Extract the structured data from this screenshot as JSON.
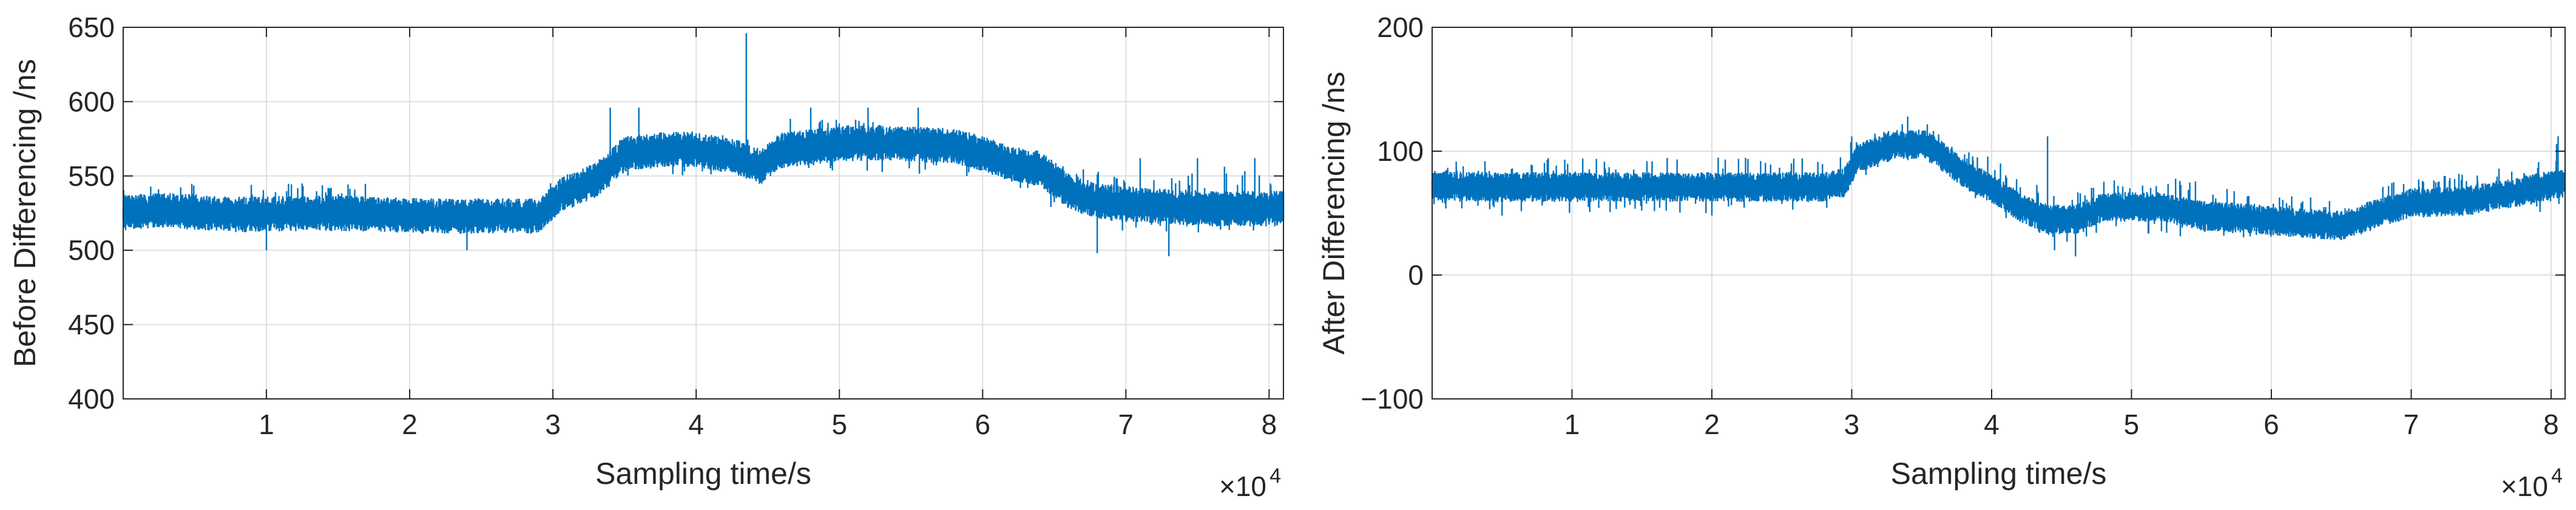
{
  "figure": {
    "background": "#ffffff",
    "series_color": "#0072BD",
    "grid_color": "#dfdfdf",
    "axis_color": "#262626"
  },
  "chart_data": [
    {
      "type": "line",
      "xlabel": "Sampling time/s",
      "ylabel": "Before Differencing /ns",
      "x_exponent_label": "×10",
      "x_exponent": "4",
      "xlim": [
        0,
        81000
      ],
      "ylim": [
        400,
        650
      ],
      "xticks": [
        10000,
        20000,
        30000,
        40000,
        50000,
        60000,
        70000,
        80000
      ],
      "xtick_labels": [
        "1",
        "2",
        "3",
        "4",
        "5",
        "6",
        "7",
        "8"
      ],
      "yticks": [
        400,
        450,
        500,
        550,
        600,
        650
      ],
      "ytick_labels": [
        "400",
        "450",
        "500",
        "550",
        "600",
        "650"
      ],
      "grid": true,
      "series": [
        {
          "baseline": [
            [
              0,
              525
            ],
            [
              3000,
              527
            ],
            [
              8000,
              524
            ],
            [
              15000,
              525
            ],
            [
              18000,
              524
            ],
            [
              22000,
              523
            ],
            [
              26000,
              523
            ],
            [
              29000,
              523
            ],
            [
              30500,
              537
            ],
            [
              33000,
              547
            ],
            [
              35000,
              565
            ],
            [
              38000,
              568
            ],
            [
              40000,
              568
            ],
            [
              43000,
              562
            ],
            [
              44500,
              556
            ],
            [
              46000,
              567
            ],
            [
              50000,
              572
            ],
            [
              54000,
              572
            ],
            [
              58000,
              570
            ],
            [
              60000,
              565
            ],
            [
              62000,
              558
            ],
            [
              64000,
              555
            ],
            [
              66000,
              540
            ],
            [
              68000,
              533
            ],
            [
              72000,
              530
            ],
            [
              76000,
              528
            ],
            [
              81000,
              528
            ]
          ],
          "band_low": [
            [
              0,
              515
            ],
            [
              18000,
              518
            ],
            [
              29000,
              515
            ],
            [
              30500,
              530
            ],
            [
              33000,
              535
            ],
            [
              35000,
              550
            ],
            [
              44000,
              548
            ],
            [
              46000,
              555
            ],
            [
              58000,
              550
            ],
            [
              62000,
              545
            ],
            [
              66000,
              520
            ],
            [
              70000,
              512
            ],
            [
              81000,
              512
            ]
          ],
          "band_high": [
            [
              0,
              545
            ],
            [
              18000,
              545
            ],
            [
              19000,
              528
            ],
            [
              29000,
              528
            ],
            [
              30000,
              550
            ],
            [
              33000,
              560
            ],
            [
              35000,
              580
            ],
            [
              44000,
              578
            ],
            [
              45000,
              560
            ],
            [
              46000,
              595
            ],
            [
              58000,
              580
            ],
            [
              60000,
              575
            ],
            [
              62000,
              565
            ],
            [
              66000,
              560
            ],
            [
              70000,
              550
            ],
            [
              81000,
              560
            ]
          ],
          "noise_amplitude": 12,
          "spikes": [
            [
              43500,
              646
            ],
            [
              34000,
              596
            ],
            [
              36000,
              596
            ],
            [
              48000,
              596
            ],
            [
              52000,
              596
            ],
            [
              55500,
              596
            ],
            [
              71000,
              562
            ],
            [
              75000,
              562
            ],
            [
              79000,
              562
            ],
            [
              10000,
              500
            ],
            [
              24000,
              500
            ],
            [
              42000,
              560
            ],
            [
              68000,
              498
            ],
            [
              73000,
              496
            ]
          ]
        }
      ]
    },
    {
      "type": "line",
      "xlabel": "Sampling time/s",
      "ylabel": "After Differencing /ns",
      "x_exponent_label": "×10",
      "x_exponent": "4",
      "xlim": [
        0,
        81000
      ],
      "ylim": [
        -100,
        200
      ],
      "xticks": [
        10000,
        20000,
        30000,
        40000,
        50000,
        60000,
        70000,
        80000
      ],
      "xtick_labels": [
        "1",
        "2",
        "3",
        "4",
        "5",
        "6",
        "7",
        "8"
      ],
      "yticks": [
        -100,
        0,
        100,
        200
      ],
      "ytick_labels": [
        "−100",
        "0",
        "100",
        "200"
      ],
      "grid": true,
      "series": [
        {
          "baseline": [
            [
              0,
              72
            ],
            [
              5000,
              71
            ],
            [
              10000,
              71
            ],
            [
              20000,
              71
            ],
            [
              28000,
              71
            ],
            [
              29500,
              75
            ],
            [
              30500,
              95
            ],
            [
              33000,
              105
            ],
            [
              35000,
              106
            ],
            [
              36000,
              100
            ],
            [
              38000,
              82
            ],
            [
              40000,
              70
            ],
            [
              42000,
              55
            ],
            [
              44000,
              45
            ],
            [
              46000,
              45
            ],
            [
              48000,
              55
            ],
            [
              52000,
              55
            ],
            [
              55000,
              48
            ],
            [
              58000,
              46
            ],
            [
              62000,
              42
            ],
            [
              65000,
              40
            ],
            [
              67000,
              48
            ],
            [
              70000,
              58
            ],
            [
              74000,
              60
            ],
            [
              78000,
              68
            ],
            [
              81000,
              75
            ]
          ],
          "band_low": [
            [
              0,
              50
            ],
            [
              28000,
              50
            ],
            [
              30000,
              72
            ],
            [
              33000,
              95
            ],
            [
              36000,
              85
            ],
            [
              38000,
              70
            ],
            [
              40000,
              50
            ],
            [
              42000,
              40
            ],
            [
              44000,
              25
            ],
            [
              47000,
              25
            ],
            [
              48000,
              35
            ],
            [
              55000,
              30
            ],
            [
              58000,
              30
            ],
            [
              65000,
              30
            ],
            [
              68000,
              35
            ],
            [
              70000,
              45
            ],
            [
              81000,
              50
            ]
          ],
          "band_high": [
            [
              0,
              95
            ],
            [
              28000,
              95
            ],
            [
              30000,
              110
            ],
            [
              33000,
              122
            ],
            [
              35000,
              128
            ],
            [
              37000,
              115
            ],
            [
              40000,
              95
            ],
            [
              42000,
              80
            ],
            [
              44000,
              70
            ],
            [
              47000,
              70
            ],
            [
              48000,
              78
            ],
            [
              55000,
              78
            ],
            [
              58000,
              65
            ],
            [
              65000,
              62
            ],
            [
              68000,
              72
            ],
            [
              70000,
              80
            ],
            [
              78000,
              90
            ],
            [
              81000,
              110
            ]
          ],
          "noise_amplitude": 12,
          "spikes": [
            [
              44000,
              112
            ],
            [
              44500,
              20
            ],
            [
              46000,
              15
            ],
            [
              34000,
              128
            ],
            [
              30000,
              112
            ],
            [
              80500,
              112
            ],
            [
              5000,
              48
            ],
            [
              20000,
              48
            ]
          ]
        }
      ]
    }
  ]
}
